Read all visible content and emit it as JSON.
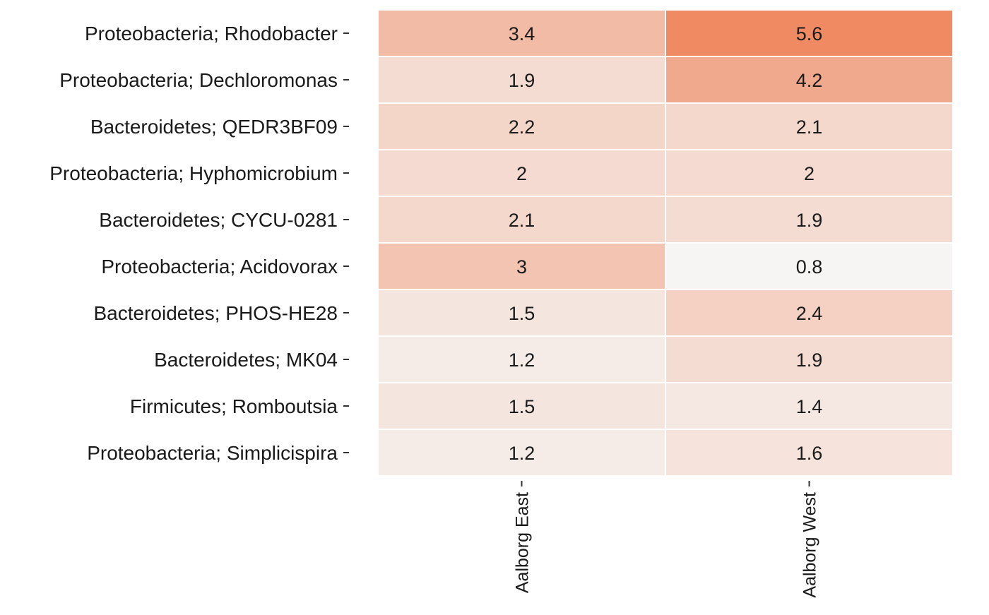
{
  "chart_data": {
    "type": "heatmap",
    "title": "",
    "xlabel": "",
    "ylabel": "",
    "columns": [
      "Aalborg East",
      "Aalborg West"
    ],
    "rows": [
      "Proteobacteria; Rhodobacter",
      "Proteobacteria; Dechloromonas",
      "Bacteroidetes; QEDR3BF09",
      "Proteobacteria; Hyphomicrobium",
      "Bacteroidetes; CYCU-0281",
      "Proteobacteria; Acidovorax",
      "Bacteroidetes; PHOS-HE28",
      "Bacteroidetes; MK04",
      "Firmicutes; Romboutsia",
      "Proteobacteria; Simplicispira"
    ],
    "values": [
      [
        3.4,
        5.6
      ],
      [
        1.9,
        4.2
      ],
      [
        2.2,
        2.1
      ],
      [
        2,
        2
      ],
      [
        2.1,
        1.9
      ],
      [
        3,
        0.8
      ],
      [
        1.5,
        2.4
      ],
      [
        1.2,
        1.9
      ],
      [
        1.5,
        1.4
      ],
      [
        1.2,
        1.6
      ]
    ],
    "color_scale": {
      "low": "#f6f5f4",
      "high": "#ef8a62",
      "min": 0.8,
      "max": 5.6
    },
    "grid": false,
    "legend": "none"
  }
}
